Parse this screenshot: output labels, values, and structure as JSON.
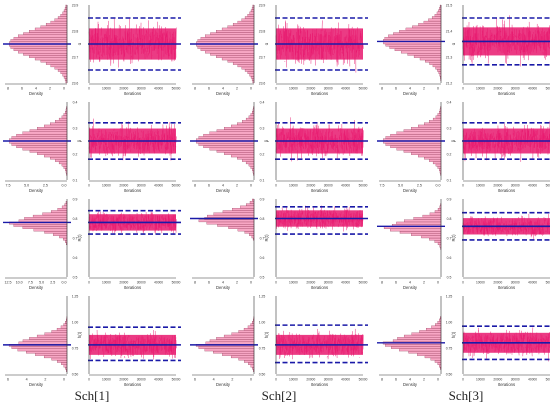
{
  "figure": {
    "captions": [
      "Sch[1]",
      "Sch[2]",
      "Sch[3]"
    ]
  },
  "colors": {
    "trace": "#e8196e",
    "histogram_fill": "#f7a6c4",
    "histogram_stroke": "#7a1a3a",
    "estimate_line": "#1a1aa8",
    "axis": "#333333"
  },
  "chart_data": [
    {
      "type": "trace+histogram",
      "column": "Sch[1]",
      "row": 1,
      "ylabel": "α",
      "ylim": [
        23.6,
        23.9
      ],
      "yticks": [
        "23.9",
        "23.8",
        "23.7",
        "23.6"
      ],
      "density_ticks": [
        "8",
        "6",
        "4",
        "2",
        "0"
      ],
      "xticks": [
        "0",
        "10000",
        "20000",
        "30000",
        "40000",
        "50000"
      ],
      "xlabel": "Iterations",
      "density_label": "Density",
      "mean": 23.75,
      "ci": [
        23.65,
        23.85
      ],
      "trace_sd": 0.05,
      "trace_range": [
        23.64,
        23.86
      ]
    },
    {
      "type": "trace+histogram",
      "column": "Sch[2]",
      "row": 1,
      "ylabel": "α",
      "ylim": [
        23.6,
        23.9
      ],
      "yticks": [
        "23.9",
        "23.8",
        "23.7",
        "23.6"
      ],
      "density_ticks": [
        "8",
        "6",
        "4",
        "2",
        "0"
      ],
      "xticks": [
        "0",
        "10000",
        "20000",
        "30000",
        "40000",
        "50000"
      ],
      "xlabel": "Iterations",
      "density_label": "Density",
      "mean": 23.75,
      "ci": [
        23.65,
        23.85
      ],
      "trace_sd": 0.05,
      "trace_range": [
        23.64,
        23.86
      ]
    },
    {
      "type": "trace+histogram",
      "column": "Sch[3]",
      "row": 1,
      "ylabel": "α",
      "ylim": [
        21.2,
        21.5
      ],
      "yticks": [
        "21.5",
        "21.4",
        "21.3",
        "21.2"
      ],
      "density_ticks": [
        "8",
        "6",
        "4",
        "2",
        "0"
      ],
      "xticks": [
        "0",
        "10000",
        "20000",
        "30000",
        "40000",
        "50000"
      ],
      "xlabel": "Iterations",
      "density_label": "Density",
      "mean": 21.36,
      "ci": [
        21.27,
        21.45
      ],
      "trace_sd": 0.045,
      "trace_range": [
        21.25,
        21.47
      ]
    },
    {
      "type": "trace+histogram",
      "column": "Sch[1]",
      "row": 2,
      "ylabel": "β",
      "ylim": [
        0.1,
        0.4
      ],
      "yticks": [
        "0.4",
        "0.3",
        "0.2",
        "0.1"
      ],
      "density_ticks": [
        "7.5",
        "5.0",
        "2.5",
        "0.0"
      ],
      "xticks": [
        "0",
        "10000",
        "20000",
        "30000",
        "40000",
        "50000"
      ],
      "xlabel": "Iterations",
      "density_label": "Density",
      "mean": 0.25,
      "ci": [
        0.18,
        0.32
      ],
      "trace_sd": 0.04,
      "trace_range": [
        0.14,
        0.38
      ]
    },
    {
      "type": "trace+histogram",
      "column": "Sch[2]",
      "row": 2,
      "ylabel": "β",
      "ylim": [
        0.1,
        0.4
      ],
      "yticks": [
        "0.4",
        "0.3",
        "0.2",
        "0.1"
      ],
      "density_ticks": [
        "8",
        "6",
        "4",
        "2",
        "0"
      ],
      "xticks": [
        "0",
        "10000",
        "20000",
        "30000",
        "40000",
        "50000"
      ],
      "xlabel": "Iterations",
      "density_label": "Density",
      "mean": 0.25,
      "ci": [
        0.18,
        0.32
      ],
      "trace_sd": 0.04,
      "trace_range": [
        0.14,
        0.38
      ]
    },
    {
      "type": "trace+histogram",
      "column": "Sch[3]",
      "row": 2,
      "ylabel": "β",
      "ylim": [
        0.1,
        0.4
      ],
      "yticks": [
        "0.4",
        "0.3",
        "0.2",
        "0.1"
      ],
      "density_ticks": [
        "7.5",
        "5.0",
        "2.5",
        "0.0"
      ],
      "xticks": [
        "0",
        "10000",
        "20000",
        "30000",
        "40000",
        "50000"
      ],
      "xlabel": "Iterations",
      "density_label": "Density",
      "mean": 0.25,
      "ci": [
        0.18,
        0.32
      ],
      "trace_sd": 0.04,
      "trace_range": [
        0.14,
        0.38
      ]
    },
    {
      "type": "trace+histogram",
      "column": "Sch[1]",
      "row": 3,
      "ylabel": "R(t)",
      "ylim": [
        0.5,
        0.9
      ],
      "yticks": [
        "0.9",
        "0.8",
        "0.7",
        "0.6",
        "0.5"
      ],
      "density_ticks": [
        "12.5",
        "10.0",
        "7.5",
        "5.0",
        "2.5",
        "0.0"
      ],
      "xticks": [
        "0",
        "10000",
        "20000",
        "30000",
        "40000",
        "50000"
      ],
      "xlabel": "Iterations",
      "density_label": "Density",
      "mean": 0.78,
      "ci": [
        0.72,
        0.84
      ],
      "trace_sd": 0.035,
      "trace_range": [
        0.6,
        0.86
      ]
    },
    {
      "type": "trace+histogram",
      "column": "Sch[2]",
      "row": 3,
      "ylabel": "R(t)",
      "ylim": [
        0.5,
        0.9
      ],
      "yticks": [
        "0.9",
        "0.8",
        "0.7",
        "0.6",
        "0.5"
      ],
      "density_ticks": [
        "8",
        "6",
        "4",
        "2",
        "0"
      ],
      "xticks": [
        "0",
        "10000",
        "20000",
        "30000",
        "40000",
        "50000"
      ],
      "xlabel": "Iterations",
      "density_label": "Density",
      "mean": 0.8,
      "ci": [
        0.72,
        0.86
      ],
      "trace_sd": 0.035,
      "trace_range": [
        0.6,
        0.88
      ]
    },
    {
      "type": "trace+histogram",
      "column": "Sch[3]",
      "row": 3,
      "ylabel": "R(t)",
      "ylim": [
        0.5,
        0.9
      ],
      "yticks": [
        "0.9",
        "0.8",
        "0.7",
        "0.6",
        "0.5"
      ],
      "density_ticks": [
        "8",
        "6",
        "4",
        "2",
        "0"
      ],
      "xticks": [
        "0",
        "10000",
        "20000",
        "30000",
        "40000",
        "50000"
      ],
      "xlabel": "Iterations",
      "density_label": "Density",
      "mean": 0.76,
      "ci": [
        0.69,
        0.83
      ],
      "trace_sd": 0.035,
      "trace_range": [
        0.6,
        0.86
      ]
    },
    {
      "type": "trace+histogram",
      "column": "Sch[1]",
      "row": 4,
      "ylabel": "h(t)",
      "ylim": [
        0.5,
        1.25
      ],
      "yticks": [
        "1.25",
        "1.00",
        "0.75",
        "0.50"
      ],
      "density_ticks": [
        "6",
        "4",
        "2",
        "0"
      ],
      "xticks": [
        "0",
        "10000",
        "20000",
        "30000",
        "40000",
        "50000"
      ],
      "xlabel": "Iterations",
      "density_label": "Density",
      "mean": 0.78,
      "ci": [
        0.63,
        0.95
      ],
      "trace_sd": 0.08,
      "trace_range": [
        0.55,
        1.12
      ]
    },
    {
      "type": "trace+histogram",
      "column": "Sch[2]",
      "row": 4,
      "ylabel": "h(t)",
      "ylim": [
        0.5,
        1.25
      ],
      "yticks": [
        "1.25",
        "1.00",
        "0.75",
        "0.50"
      ],
      "density_ticks": [
        "6",
        "4",
        "2",
        "0"
      ],
      "xticks": [
        "0",
        "10000",
        "20000",
        "30000",
        "40000",
        "50000"
      ],
      "xlabel": "Iterations",
      "density_label": "Density",
      "mean": 0.78,
      "ci": [
        0.61,
        0.97
      ],
      "trace_sd": 0.08,
      "trace_range": [
        0.55,
        1.15
      ]
    },
    {
      "type": "trace+histogram",
      "column": "Sch[3]",
      "row": 4,
      "ylabel": "h(t)",
      "ylim": [
        0.5,
        1.25
      ],
      "yticks": [
        "1.25",
        "1.00",
        "0.75",
        "0.50"
      ],
      "density_ticks": [
        "8",
        "6",
        "4",
        "2",
        "0"
      ],
      "xticks": [
        "0",
        "10000",
        "20000",
        "30000",
        "40000",
        "50000"
      ],
      "xlabel": "Iterations",
      "density_label": "Density",
      "mean": 0.8,
      "ci": [
        0.64,
        0.96
      ],
      "trace_sd": 0.08,
      "trace_range": [
        0.56,
        1.12
      ]
    }
  ]
}
